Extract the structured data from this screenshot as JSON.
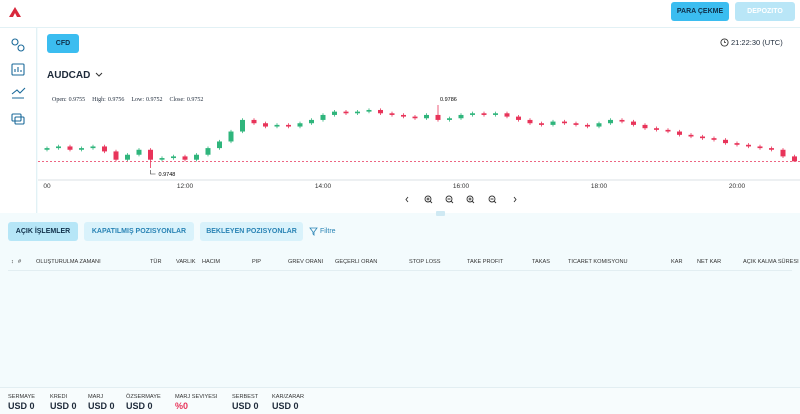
{
  "header": {
    "buttons": [
      "PARA ÇEKME",
      "DEPOZITO"
    ]
  },
  "panel": {
    "market_tab": "CFD",
    "clock": "21:22:30 (UTC)",
    "symbol": "AUDCAD"
  },
  "chart": {
    "type": "candlestick",
    "ohlc": [
      {
        "label": "Open:",
        "value": 0.9755
      },
      {
        "label": "High:",
        "value": 0.9756
      },
      {
        "label": "Low:",
        "value": 0.9752
      },
      {
        "label": "Close:",
        "value": 0.9752
      }
    ],
    "candles": [
      [
        0.9759,
        0.9761,
        0.9758,
        0.976
      ],
      [
        0.976,
        0.9762,
        0.9759,
        0.9761
      ],
      [
        0.9761,
        0.9762,
        0.9758,
        0.9759
      ],
      [
        0.9759,
        0.9761,
        0.9758,
        0.976
      ],
      [
        0.976,
        0.9762,
        0.9759,
        0.9761
      ],
      [
        0.9761,
        0.9762,
        0.9757,
        0.9758
      ],
      [
        0.9758,
        0.9759,
        0.9752,
        0.9753
      ],
      [
        0.9753,
        0.9757,
        0.9752,
        0.9756
      ],
      [
        0.9756,
        0.976,
        0.9755,
        0.9759
      ],
      [
        0.9759,
        0.976,
        0.9748,
        0.9753
      ],
      [
        0.9753,
        0.9755,
        0.9752,
        0.9754
      ],
      [
        0.9754,
        0.9756,
        0.9753,
        0.9755
      ],
      [
        0.9755,
        0.9756,
        0.9752,
        0.9753
      ],
      [
        0.9753,
        0.9757,
        0.9752,
        0.9756
      ],
      [
        0.9756,
        0.9761,
        0.9755,
        0.976
      ],
      [
        0.976,
        0.9765,
        0.9759,
        0.9764
      ],
      [
        0.9764,
        0.9771,
        0.9763,
        0.977
      ],
      [
        0.977,
        0.9778,
        0.9769,
        0.9777
      ],
      [
        0.9777,
        0.9778,
        0.9774,
        0.9775
      ],
      [
        0.9775,
        0.9776,
        0.9772,
        0.9773
      ],
      [
        0.9773,
        0.9775,
        0.9772,
        0.9774
      ],
      [
        0.9774,
        0.9775,
        0.9772,
        0.9773
      ],
      [
        0.9773,
        0.9776,
        0.9772,
        0.9775
      ],
      [
        0.9775,
        0.9778,
        0.9774,
        0.9777
      ],
      [
        0.9777,
        0.9781,
        0.9776,
        0.978
      ],
      [
        0.978,
        0.9783,
        0.9779,
        0.9782
      ],
      [
        0.9782,
        0.9783,
        0.978,
        0.9781
      ],
      [
        0.9781,
        0.9783,
        0.978,
        0.9782
      ],
      [
        0.9782,
        0.9784,
        0.9781,
        0.9783
      ],
      [
        0.9783,
        0.9784,
        0.978,
        0.9781
      ],
      [
        0.9781,
        0.9782,
        0.9779,
        0.978
      ],
      [
        0.978,
        0.9781,
        0.9778,
        0.9779
      ],
      [
        0.9779,
        0.978,
        0.9777,
        0.9778
      ],
      [
        0.9778,
        0.9781,
        0.9777,
        0.978
      ],
      [
        0.978,
        0.9786,
        0.9776,
        0.9777
      ],
      [
        0.9777,
        0.9779,
        0.9776,
        0.9778
      ],
      [
        0.9778,
        0.9781,
        0.9777,
        0.978
      ],
      [
        0.978,
        0.9782,
        0.9779,
        0.9781
      ],
      [
        0.9781,
        0.9782,
        0.9779,
        0.978
      ],
      [
        0.978,
        0.9782,
        0.9779,
        0.9781
      ],
      [
        0.9781,
        0.9782,
        0.9778,
        0.9779
      ],
      [
        0.9779,
        0.978,
        0.9776,
        0.9777
      ],
      [
        0.9777,
        0.9778,
        0.9774,
        0.9775
      ],
      [
        0.9775,
        0.9776,
        0.9773,
        0.9774
      ],
      [
        0.9774,
        0.9777,
        0.9773,
        0.9776
      ],
      [
        0.9776,
        0.9777,
        0.9774,
        0.9775
      ],
      [
        0.9775,
        0.9776,
        0.9773,
        0.9774
      ],
      [
        0.9774,
        0.9775,
        0.9772,
        0.9773
      ],
      [
        0.9773,
        0.9776,
        0.9772,
        0.9775
      ],
      [
        0.9775,
        0.9778,
        0.9774,
        0.9777
      ],
      [
        0.9777,
        0.9778,
        0.9775,
        0.9776
      ],
      [
        0.9776,
        0.9777,
        0.9773,
        0.9774
      ],
      [
        0.9774,
        0.9775,
        0.9771,
        0.9772
      ],
      [
        0.9772,
        0.9773,
        0.977,
        0.9771
      ],
      [
        0.9771,
        0.9772,
        0.9769,
        0.977
      ],
      [
        0.977,
        0.9771,
        0.9767,
        0.9768
      ],
      [
        0.9768,
        0.9769,
        0.9766,
        0.9767
      ],
      [
        0.9767,
        0.9768,
        0.9765,
        0.9766
      ],
      [
        0.9766,
        0.9767,
        0.9764,
        0.9765
      ],
      [
        0.9765,
        0.9766,
        0.9762,
        0.9763
      ],
      [
        0.9763,
        0.9764,
        0.9761,
        0.9762
      ],
      [
        0.9762,
        0.9763,
        0.976,
        0.9761
      ],
      [
        0.9761,
        0.9762,
        0.9759,
        0.976
      ],
      [
        0.976,
        0.9761,
        0.9758,
        0.9759
      ],
      [
        0.9759,
        0.976,
        0.9754,
        0.9755
      ],
      [
        0.9755,
        0.9756,
        0.9752,
        0.9752
      ]
    ],
    "high_label": 0.9786,
    "low_label": 0.9748,
    "time_labels": [
      "00",
      "12:00",
      "14:00",
      "16:00",
      "18:00",
      "20:00"
    ],
    "up_color": "#2fb57c",
    "down_color": "#e8345a",
    "price_line_color": "#e8345a"
  },
  "tabs": [
    "AÇIK İŞLEMLER",
    "KAPATILMIŞ POZISYONLAR",
    "BEKLEYEN POZISYONLAR"
  ],
  "filter": "Filtre",
  "table": {
    "columns": [
      "#",
      "OLUŞTURULMA ZAMANI",
      "TÜR",
      "VARLIK",
      "HACIM",
      "PIP",
      "GREV ORANI",
      "GEÇERLI ORAN",
      "STOP LOSS",
      "TAKE PROFIT",
      "TAKAS",
      "TICARET KOMISYONU",
      "KAR",
      "NET KAR",
      "AÇIK KALMA SÜRESI"
    ]
  },
  "footer": [
    {
      "label": "SERMAYE",
      "value": "USD 0"
    },
    {
      "label": "KREDI",
      "value": "USD 0"
    },
    {
      "label": "MARJ",
      "value": "USD 0"
    },
    {
      "label": "ÖZSERMAYE",
      "value": "USD 0"
    },
    {
      "label": "MARJ SEVIYESI",
      "value": "%0"
    },
    {
      "label": "SERBEST",
      "value": "USD 0"
    },
    {
      "label": "KAR/ZARAR",
      "value": "USD 0"
    }
  ]
}
